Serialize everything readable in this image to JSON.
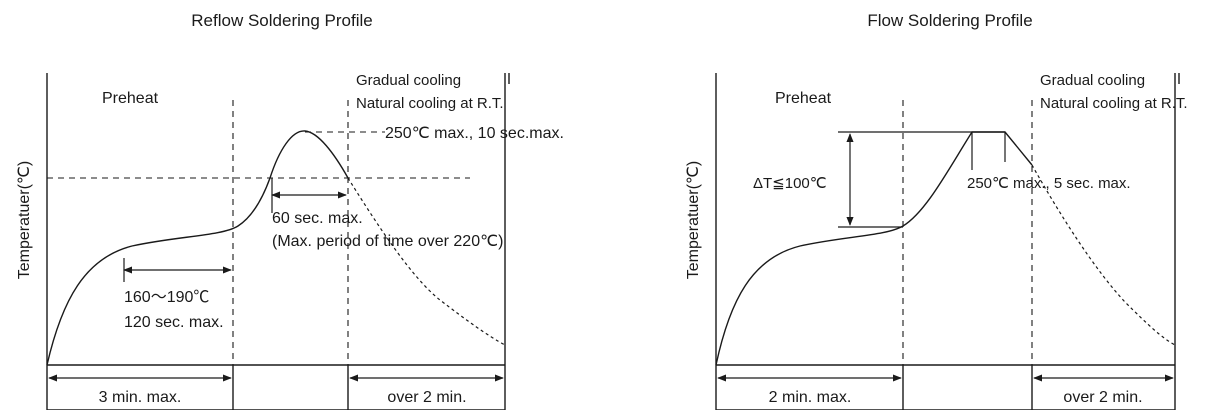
{
  "reflow": {
    "title": "Reflow Soldering Profile",
    "ylabel": "Temperatuer(℃)",
    "preheat": "Preheat",
    "cooling_1": "Gradual cooling",
    "cooling_2": "Natural cooling at R.T.",
    "peak_label": "250℃ max., 10 sec.max.",
    "above_label_1": "60 sec. max.",
    "above_label_2": "(Max. period of time over 220℃)",
    "preheat_range": "160～190℃",
    "preheat_time": "120 sec. max.",
    "seg_left": "3 min. max.",
    "seg_right": "over 2 min."
  },
  "flow": {
    "title": "Flow Soldering Profile",
    "ylabel": "Temperatuer(℃)",
    "preheat": "Preheat",
    "cooling_1": "Gradual cooling",
    "cooling_2": "Natural cooling at R.T.",
    "delta_label": "ΔT≦100℃",
    "peak_label": "250℃ max., 5 sec. max.",
    "seg_left": "2 min. max.",
    "seg_right": "over 2 min."
  }
}
